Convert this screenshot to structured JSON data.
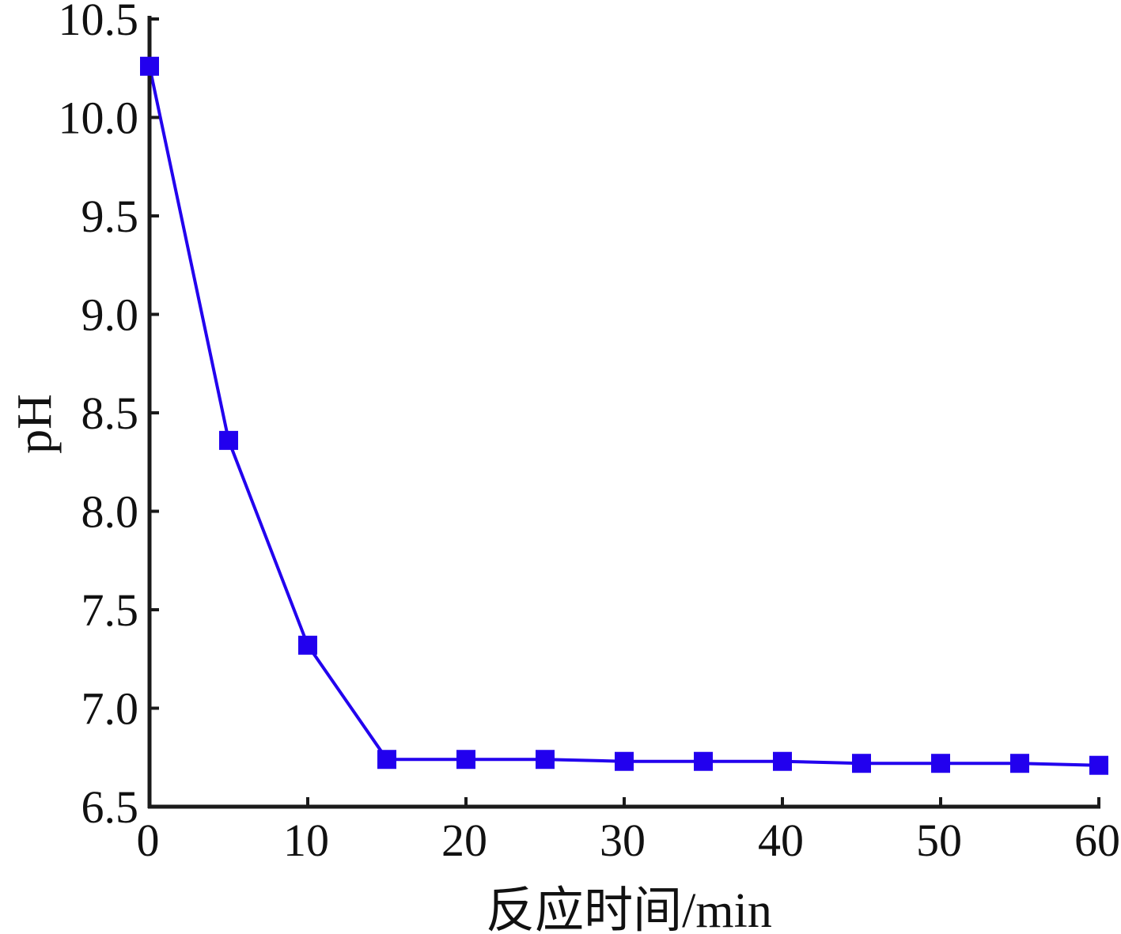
{
  "chart_data": {
    "type": "line",
    "title": "",
    "xlabel": "反应时间/min",
    "ylabel": "pH",
    "xlim": [
      0,
      60
    ],
    "ylim": [
      6.5,
      10.5
    ],
    "x_ticks": [
      0,
      10,
      20,
      30,
      40,
      50,
      60
    ],
    "y_ticks": [
      "6.5",
      "7.0",
      "7.5",
      "8.0",
      "8.5",
      "9.0",
      "9.5",
      "10.0",
      "10.5"
    ],
    "grid": false,
    "legend": "none",
    "marker": "square",
    "color": "#2200ee",
    "series": [
      {
        "x": [
          0,
          5,
          10,
          15,
          20,
          25,
          30,
          35,
          40,
          45,
          50,
          55,
          60
        ],
        "y": [
          10.26,
          8.36,
          7.32,
          6.74,
          6.74,
          6.74,
          6.73,
          6.73,
          6.73,
          6.72,
          6.72,
          6.72,
          6.71
        ]
      }
    ]
  }
}
